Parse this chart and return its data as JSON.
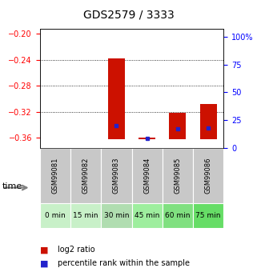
{
  "title": "GDS2579 / 3333",
  "samples": [
    "GSM99081",
    "GSM99082",
    "GSM99083",
    "GSM99084",
    "GSM99085",
    "GSM99086"
  ],
  "time_labels": [
    "0 min",
    "15 min",
    "30 min",
    "45 min",
    "60 min",
    "75 min"
  ],
  "time_colors": [
    "#c8f0c8",
    "#c8f0c8",
    "#b0ddb0",
    "#9eee9e",
    "#80e080",
    "#66dd66"
  ],
  "log2_base": -0.362,
  "log2_tops": [
    -0.362,
    -0.362,
    -0.238,
    -0.36,
    -0.322,
    -0.308
  ],
  "percentile_values": [
    null,
    null,
    20.0,
    8.0,
    17.0,
    18.0
  ],
  "ylim_left": [
    -0.375,
    -0.193
  ],
  "ylim_right": [
    0,
    107
  ],
  "yticks_left": [
    -0.36,
    -0.32,
    -0.28,
    -0.24,
    -0.2
  ],
  "yticks_right": [
    0,
    25,
    50,
    75,
    100
  ],
  "bar_color": "#cc1100",
  "blue_color": "#2222cc",
  "sample_bg": "#c8c8c8",
  "fig_bg": "#ffffff",
  "title_fontsize": 10,
  "tick_fontsize": 7,
  "sample_fontsize": 6,
  "time_fontsize": 6.5
}
